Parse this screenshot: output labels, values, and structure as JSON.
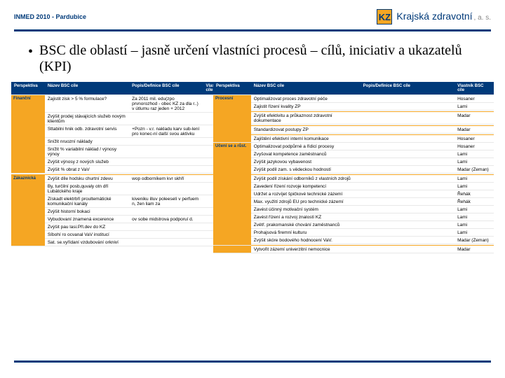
{
  "header": {
    "left_text": "INMED 2010 - Pardubice",
    "logo_text": "KZ",
    "brand_main": "Krajská zdravotní",
    "brand_sub": ", a. s."
  },
  "title": "BSC dle oblastí – jasně určení vlastníci procesů – cílů, iniciativ a ukazatelů (KPI)",
  "thead": {
    "persp": "Perspektiva",
    "name": "Název BSC cíle",
    "pop": "Popis/Definice BSC cíle",
    "own": "Vlastník BSC cíle"
  },
  "left": {
    "persp1": "Finanční",
    "r1c1": "Zajistit zisk > 5 % formulace?",
    "r1c2": "Za 2011 mil. edu(zpo prvnorozhod - obec KZ za dla r..)\nv útlumu raz jeden + 2012",
    "r2c1": "Zvýšit prodej stávajících služeb novým klientům",
    "r3c1": "Sttabilni hnik odb. zdravotní servis",
    "r3c2": "+Pozn - v.r. nakladu karv sub-lení pro konec-ní další svou aktivku",
    "r4c1": "Snížit nruozní náklady",
    "r5c1": "Snížit % variabilní náklad / výnosy výnoy",
    "r6c1": "Zvýšit výnosy z nových služeb",
    "r7c1": "Zvýšit % obrat z VaV",
    "persp2": "Zákaznická",
    "r8c1": "Zvýšit díle hodsku churtní zdevu",
    "r8c2": "wop odborníkem kvr skhří",
    "r9c1": "By, turčilní posb,quvaly otn dří Lubátckého kraje",
    "r10c1": "Získadt elektrbří proultemátické komunikační kanály",
    "r10c2": "kiveniku illuv poleeselí v perfuem n, žen liam za",
    "r11c1": "Zvýšit historní bokaci",
    "r12c1": "Vybudovaní znamená excerence",
    "r12c2": "ov sobe midstrova podporuí d.",
    "r13c1": "Zvýšit pau lasi.Přl.dev do KZ",
    "r14c1": "Síbohí ro ocvanal VaV institucí",
    "r15c1": "Sat. se.vyřídaní vzdubování orkniví"
  },
  "right": {
    "persp1": "Procesní",
    "r1c1": "Optimalizovat proces zdravotní péče",
    "r1c2": "Hosaner",
    "r2c1": "Zajistit řízení kvality ZP",
    "r2c2": "Lami",
    "r3c1": "Zvýšit efektivitu a průkaznost zdravotní dokumentace",
    "r3c2": "Madar",
    "r4c1": "Standardizovat postupy ZP",
    "r4c2": "Madar",
    "r5c1": "Zajištění efektivní interní komunikace",
    "r5c2": "Hosaner",
    "r6c1": "Optimalizovat podpůrné a řídicí procesy",
    "r6c2": "Hosaner",
    "persp2": "Učení se a růst.",
    "r7c1": "Zvyšovat kompetence zaměstnanců",
    "r7c2": "Lami",
    "r8c1": "Zvýšit jazykovou vybavenost",
    "r8c2": "Lami",
    "r9c1": "Zvýšit podíl zam. s vědeckou hodností",
    "r9c2": "Madar (Zeman)",
    "r10c1": "Zvýšit podíl získání odborníků z vlastních zdrojů",
    "r10c2": "Lami",
    "r11c1": "Zavedení řízení rozvoje kompetencí",
    "r11c2": "Lami",
    "r12c1": "Udržet a rozvíjet špičkové technické zázemí",
    "r12c2": "Řehák",
    "r13c1": "Max. využití zdrojů EU pro technické zázemí",
    "r13c2": "Řehák",
    "r14c1": "Zavést účinný motivační systém",
    "r14c2": "Lami",
    "r15c1": "Zavést řízení a rozvoj znalostí KZ",
    "r15c2": "Lami",
    "r16c1": "Zvětř. prakomanské chování zaměstnanců",
    "r16c2": "Lami",
    "r17c1": "Prohajsová firemní kulturu",
    "r17c2": "Lami",
    "r18c1": "Zvýšit skóre bodového hodnocení VaV.",
    "r18c2": "Madar (Zeman)",
    "r19c1": "Vytvořit zázemí univerzitní nemocnice",
    "r19c2": "Madar"
  },
  "colors": {
    "brand_blue": "#003a7a",
    "accent_orange": "#f5a623"
  }
}
